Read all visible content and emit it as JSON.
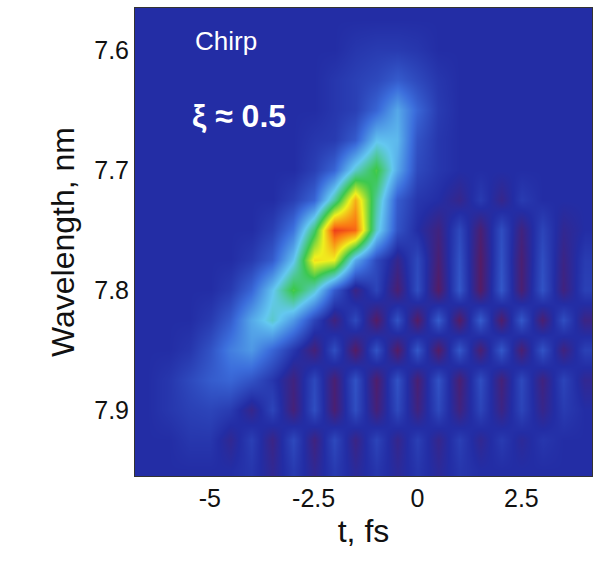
{
  "chart_data": {
    "type": "heatmap",
    "annotations": [
      "Chirp",
      "ξ ≈ 0.5"
    ],
    "x_label": "t, fs",
    "y_label": "Wavelength, nm",
    "x": [
      -6.5,
      -6,
      -5.5,
      -5,
      -4.5,
      -4,
      -3.5,
      -3,
      -2.5,
      -2,
      -1.5,
      -1,
      -0.5,
      0,
      0.5,
      1,
      1.5,
      2,
      2.5,
      3,
      3.5,
      4
    ],
    "y": [
      7.575,
      7.6,
      7.625,
      7.65,
      7.675,
      7.7,
      7.725,
      7.75,
      7.775,
      7.8,
      7.825,
      7.85,
      7.875,
      7.9,
      7.925,
      7.95
    ],
    "z": [
      [
        0,
        0,
        0,
        0,
        0,
        0,
        0,
        0,
        0,
        0,
        0,
        0,
        0,
        0,
        0,
        0,
        0,
        0,
        0,
        0,
        0,
        0
      ],
      [
        0,
        0,
        0,
        0,
        0,
        0,
        0,
        0,
        0,
        0,
        0.02,
        0.03,
        0.03,
        0.02,
        0,
        0,
        0,
        0,
        0,
        0,
        0,
        0
      ],
      [
        0,
        0,
        0,
        0,
        0,
        0,
        0,
        0,
        0,
        0.02,
        0.04,
        0.06,
        0.1,
        0.06,
        0.02,
        0,
        0,
        0,
        0,
        0,
        0,
        0
      ],
      [
        0,
        0,
        0,
        0,
        0,
        0,
        0,
        0,
        0,
        0.02,
        0.04,
        0.12,
        0.25,
        0.12,
        0.03,
        0,
        0,
        0,
        0,
        0,
        0,
        0
      ],
      [
        0,
        0,
        0,
        0,
        0,
        0,
        0,
        0,
        0.02,
        0.03,
        0.1,
        0.3,
        0.28,
        0.08,
        0.02,
        0,
        0,
        0,
        0,
        0,
        0,
        0
      ],
      [
        0,
        0,
        0,
        0,
        0,
        0,
        0,
        0,
        0.04,
        0.12,
        0.35,
        0.5,
        0.25,
        0.06,
        0.02,
        0,
        0,
        0,
        0,
        0,
        0,
        0
      ],
      [
        0,
        0,
        0,
        0,
        0,
        0,
        0,
        0.04,
        0.12,
        0.4,
        0.75,
        0.4,
        0.1,
        0.02,
        0,
        -0.04,
        0.03,
        -0.04,
        0.03,
        0,
        0,
        0
      ],
      [
        0,
        0,
        0,
        0,
        0,
        0,
        0.04,
        0.15,
        0.45,
        0.9,
        0.85,
        0.35,
        0.08,
        0,
        -0.06,
        0.06,
        -0.08,
        0.07,
        -0.06,
        0.05,
        -0.03,
        0
      ],
      [
        0,
        0,
        0,
        0,
        0,
        0.03,
        0.1,
        0.3,
        0.68,
        0.65,
        0.25,
        0.06,
        -0.04,
        0.06,
        -0.08,
        0.08,
        -0.1,
        0.08,
        -0.08,
        0.07,
        -0.05,
        0.03
      ],
      [
        0,
        0,
        0,
        0,
        0.03,
        0.12,
        0.3,
        0.5,
        0.35,
        0.1,
        -0.05,
        0.05,
        -0.08,
        0.07,
        -0.1,
        0.09,
        -0.1,
        0.09,
        -0.08,
        0.08,
        -0.06,
        0.04
      ],
      [
        0,
        0,
        0,
        0.03,
        0.1,
        0.25,
        0.35,
        0.22,
        0.05,
        -0.06,
        0.06,
        -0.1,
        0.08,
        -0.1,
        0.1,
        -0.1,
        0.1,
        -0.09,
        0.09,
        -0.08,
        0.07,
        -0.05
      ],
      [
        0,
        0,
        0.02,
        0.08,
        0.17,
        0.22,
        0.12,
        0.02,
        -0.07,
        0.07,
        -0.1,
        0.08,
        -0.1,
        0.09,
        -0.1,
        0.09,
        -0.08,
        0.09,
        -0.08,
        0.08,
        -0.06,
        0.04
      ],
      [
        0,
        0.02,
        0.06,
        0.1,
        0.12,
        0.08,
        0.02,
        -0.06,
        0.06,
        -0.08,
        0.08,
        -0.09,
        0.08,
        -0.08,
        0.08,
        -0.08,
        0.07,
        -0.07,
        0.06,
        -0.06,
        0.05,
        -0.03
      ],
      [
        0,
        0.02,
        0.04,
        0.05,
        0.03,
        -0.04,
        0.05,
        -0.07,
        0.07,
        -0.08,
        0.07,
        -0.07,
        0.06,
        -0.06,
        0.06,
        -0.06,
        0.05,
        -0.05,
        0.05,
        -0.04,
        0.03,
        0
      ],
      [
        0,
        0,
        0.02,
        0.02,
        -0.03,
        0.04,
        -0.05,
        0.06,
        -0.06,
        0.06,
        -0.05,
        0.05,
        -0.04,
        0.04,
        -0.04,
        0.04,
        -0.03,
        0.03,
        -0.02,
        0.02,
        0,
        0
      ],
      [
        0,
        0,
        0,
        0,
        0,
        0.02,
        -0.03,
        0.03,
        -0.03,
        0.03,
        -0.02,
        0.02,
        -0.02,
        0.02,
        -0.02,
        0.02,
        0,
        0,
        0,
        0,
        0,
        0
      ]
    ],
    "zlim": [
      -0.15,
      1
    ],
    "xlim": [
      -6.8,
      4.2
    ],
    "ylim": [
      7.955,
      7.565
    ],
    "xticks": [
      -5,
      -2.5,
      0,
      2.5
    ],
    "yticks": [
      7.6,
      7.7,
      7.8,
      7.9
    ],
    "grid": false
  }
}
